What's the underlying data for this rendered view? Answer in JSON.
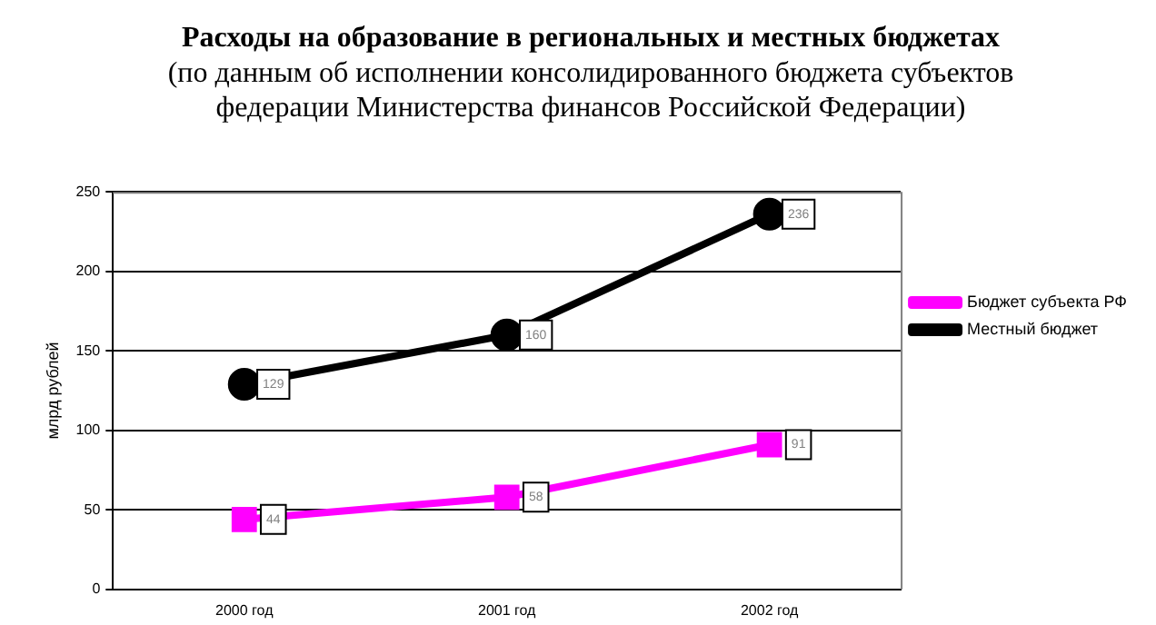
{
  "chart_data": {
    "type": "line",
    "title": "Расходы на образование в региональных и местных бюджетах",
    "subtitle": "(по данным об исполнении консолидированного бюджета субъектов федерации Министерства финансов Российской Федерации)",
    "ylabel": "млрд рублей",
    "categories": [
      "2000 год",
      "2001 год",
      "2002 год"
    ],
    "series": [
      {
        "name": "Бюджет субъекта РФ",
        "color": "#ff00ff",
        "marker": "square",
        "values": [
          44,
          58,
          91
        ]
      },
      {
        "name": "Местный бюджет",
        "color": "#000000",
        "marker": "circle",
        "values": [
          129,
          160,
          236
        ]
      }
    ],
    "ylim": [
      0,
      250
    ],
    "yticks": [
      0,
      50,
      100,
      150,
      200,
      250
    ],
    "grid": "y",
    "legend": "right",
    "data_labels": true
  }
}
